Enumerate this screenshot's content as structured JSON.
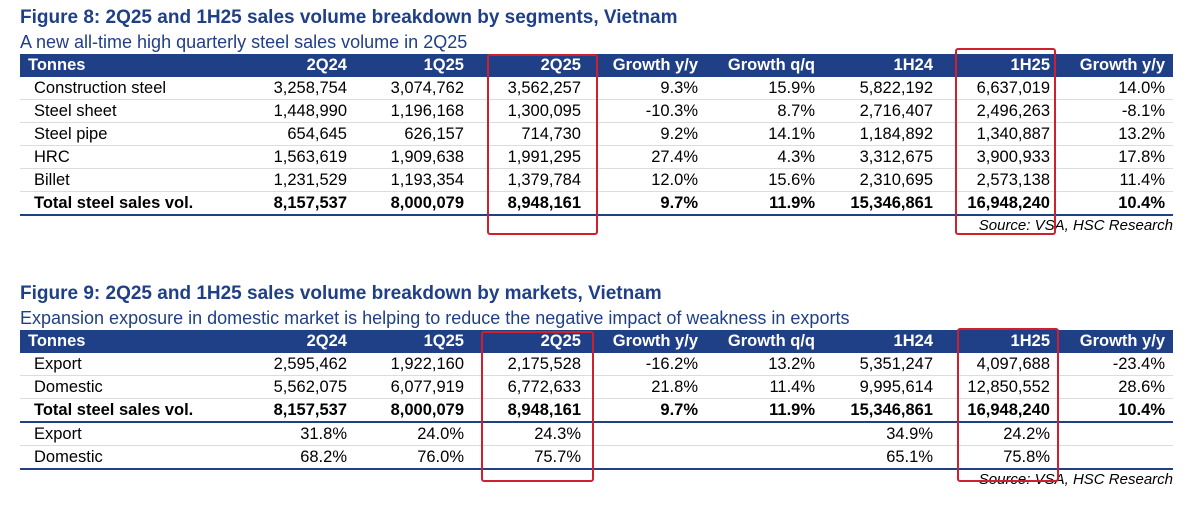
{
  "figure8": {
    "title": "Figure 8: 2Q25 and 1H25 sales volume breakdown by segments, Vietnam",
    "subtitle": "A new all-time high quarterly steel sales volume in 2Q25",
    "columns": [
      "Tonnes",
      "2Q24",
      "1Q25",
      "2Q25",
      "Growth y/y",
      "Growth q/q",
      "1H24",
      "1H25",
      "Growth y/y"
    ],
    "rows": [
      {
        "cells": [
          "Construction steel",
          "3,258,754",
          "3,074,762",
          "3,562,257",
          "9.3%",
          "15.9%",
          "5,822,192",
          "6,637,019",
          "14.0%"
        ],
        "total": false
      },
      {
        "cells": [
          "Steel sheet",
          "1,448,990",
          "1,196,168",
          "1,300,095",
          "-10.3%",
          "8.7%",
          "2,716,407",
          "2,496,263",
          "-8.1%"
        ],
        "total": false
      },
      {
        "cells": [
          "Steel pipe",
          "654,645",
          "626,157",
          "714,730",
          "9.2%",
          "14.1%",
          "1,184,892",
          "1,340,887",
          "13.2%"
        ],
        "total": false
      },
      {
        "cells": [
          "HRC",
          "1,563,619",
          "1,909,638",
          "1,991,295",
          "27.4%",
          "4.3%",
          "3,312,675",
          "3,900,933",
          "17.8%"
        ],
        "total": false
      },
      {
        "cells": [
          "Billet",
          "1,231,529",
          "1,193,354",
          "1,379,784",
          "12.0%",
          "15.6%",
          "2,310,695",
          "2,573,138",
          "11.4%"
        ],
        "total": false
      },
      {
        "cells": [
          "Total steel sales vol.",
          "8,157,537",
          "8,000,079",
          "8,948,161",
          "9.7%",
          "11.9%",
          "15,346,861",
          "16,948,240",
          "10.4%"
        ],
        "total": true
      }
    ],
    "source": "Source: VSA, HSC Research"
  },
  "figure9": {
    "title": "Figure 9: 2Q25 and 1H25 sales volume breakdown by markets, Vietnam",
    "subtitle": "Expansion exposure in domestic market is helping to reduce the negative impact of weakness in exports",
    "columns": [
      "Tonnes",
      "2Q24",
      "1Q25",
      "2Q25",
      "Growth y/y",
      "Growth q/q",
      "1H24",
      "1H25",
      "Growth y/y"
    ],
    "rows": [
      {
        "cells": [
          "Export",
          "2,595,462",
          "1,922,160",
          "2,175,528",
          "-16.2%",
          "13.2%",
          "5,351,247",
          "4,097,688",
          "-23.4%"
        ],
        "total": false
      },
      {
        "cells": [
          "Domestic",
          "5,562,075",
          "6,077,919",
          "6,772,633",
          "21.8%",
          "11.4%",
          "9,995,614",
          "12,850,552",
          "28.6%"
        ],
        "total": false
      },
      {
        "cells": [
          "Total steel sales vol.",
          "8,157,537",
          "8,000,079",
          "8,948,161",
          "9.7%",
          "11.9%",
          "15,346,861",
          "16,948,240",
          "10.4%"
        ],
        "total": true
      },
      {
        "cells": [
          "Export",
          "31.8%",
          "24.0%",
          "24.3%",
          "",
          "",
          "34.9%",
          "24.2%",
          ""
        ],
        "total": false
      },
      {
        "cells": [
          "Domestic",
          "68.2%",
          "76.0%",
          "75.7%",
          "",
          "",
          "65.1%",
          "75.8%",
          ""
        ],
        "total": false
      }
    ],
    "source": "Source: VSA, HSC Research"
  },
  "colors": {
    "header_bg": "#1f3f86",
    "title_text": "#1f3f86",
    "highlight_box": "#d0202e"
  }
}
